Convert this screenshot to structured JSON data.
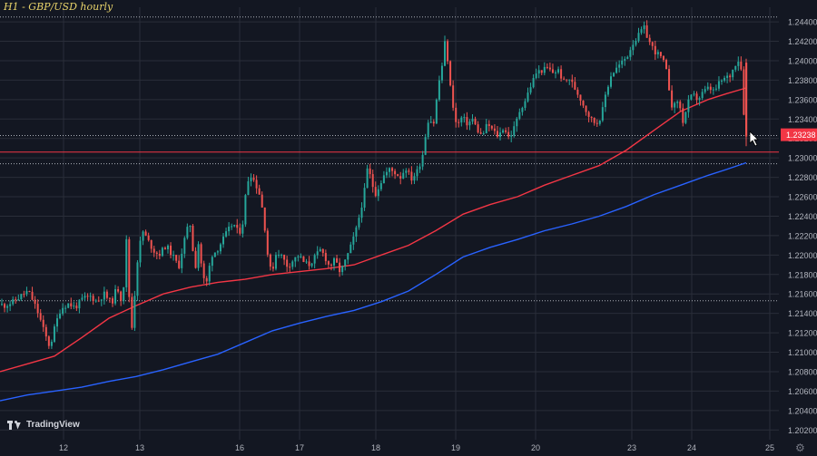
{
  "header": {
    "title": "H1 - GBP/USD hourly"
  },
  "branding": {
    "logo_text": "TradingView"
  },
  "icons": {
    "settings": "gear-icon",
    "cursor": "cursor-arrow-icon"
  },
  "colors": {
    "background": "#131722",
    "up": "#26a69a",
    "down": "#ef5350",
    "ma_fast": "#f23645",
    "ma_slow": "#2962ff",
    "grid": "#2a2e39",
    "axis_text": "#b2b5be",
    "title": "#e8d36a"
  },
  "chart_data": {
    "type": "candlestick",
    "title": "H1 - GBP/USD hourly",
    "symbol": "GBP/USD",
    "timeframe": "1H",
    "ylim": [
      1.2,
      1.2455
    ],
    "y_ticks": [
      "1.24400",
      "1.24200",
      "1.24000",
      "1.23800",
      "1.23600",
      "1.23400",
      "1.23200",
      "1.23000",
      "1.22800",
      "1.22600",
      "1.22400",
      "1.22200",
      "1.22000",
      "1.21800",
      "1.21600",
      "1.21400",
      "1.21200",
      "1.21000",
      "1.20800",
      "1.20600",
      "1.20400",
      "1.20200"
    ],
    "x_ticks": [
      {
        "label": "12",
        "t": 70
      },
      {
        "label": "13",
        "t": 154
      },
      {
        "label": "16",
        "t": 264
      },
      {
        "label": "17",
        "t": 330
      },
      {
        "label": "18",
        "t": 414
      },
      {
        "label": "19",
        "t": 502
      },
      {
        "label": "20",
        "t": 590
      },
      {
        "label": "23",
        "t": 696
      },
      {
        "label": "24",
        "t": 762
      },
      {
        "label": "25",
        "t": 848
      }
    ],
    "last_price": {
      "label": "1.23238",
      "value": 1.23238
    },
    "horizontal_levels": [
      {
        "value": 1.2445,
        "style": "dotted",
        "color": "#d1d4dc"
      },
      {
        "value": 1.2323,
        "style": "dotted",
        "color": "#d1d4dc"
      },
      {
        "value": 1.2306,
        "style": "solid",
        "color": "#f23645"
      },
      {
        "value": 1.2294,
        "style": "dotted",
        "color": "#d1d4dc"
      },
      {
        "value": 1.2153,
        "style": "dotted",
        "color": "#d1d4dc"
      }
    ],
    "price_path": [
      [
        0,
        1.215
      ],
      [
        8,
        1.2148
      ],
      [
        18,
        1.2152
      ],
      [
        26,
        1.2158
      ],
      [
        34,
        1.2163
      ],
      [
        40,
        1.2152
      ],
      [
        46,
        1.2138
      ],
      [
        52,
        1.212
      ],
      [
        58,
        1.2105
      ],
      [
        64,
        1.2128
      ],
      [
        70,
        1.2145
      ],
      [
        78,
        1.215
      ],
      [
        86,
        1.2146
      ],
      [
        94,
        1.2155
      ],
      [
        102,
        1.2158
      ],
      [
        110,
        1.2152
      ],
      [
        118,
        1.216
      ],
      [
        126,
        1.215
      ],
      [
        132,
        1.2168
      ],
      [
        138,
        1.215
      ],
      [
        143,
        1.2225
      ],
      [
        147,
        1.211
      ],
      [
        151,
        1.2155
      ],
      [
        155,
        1.22
      ],
      [
        160,
        1.2225
      ],
      [
        166,
        1.2215
      ],
      [
        172,
        1.2205
      ],
      [
        178,
        1.22
      ],
      [
        186,
        1.221
      ],
      [
        194,
        1.2198
      ],
      [
        200,
        1.2188
      ],
      [
        206,
        1.2215
      ],
      [
        212,
        1.2235
      ],
      [
        218,
        1.2185
      ],
      [
        222,
        1.2215
      ],
      [
        226,
        1.218
      ],
      [
        230,
        1.2168
      ],
      [
        236,
        1.22
      ],
      [
        242,
        1.2205
      ],
      [
        248,
        1.2215
      ],
      [
        254,
        1.2225
      ],
      [
        260,
        1.2233
      ],
      [
        266,
        1.2222
      ],
      [
        270,
        1.223
      ],
      [
        274,
        1.2265
      ],
      [
        278,
        1.2285
      ],
      [
        284,
        1.2275
      ],
      [
        290,
        1.226
      ],
      [
        294,
        1.2235
      ],
      [
        298,
        1.22
      ],
      [
        302,
        1.218
      ],
      [
        308,
        1.2205
      ],
      [
        314,
        1.2198
      ],
      [
        320,
        1.2188
      ],
      [
        326,
        1.2195
      ],
      [
        332,
        1.22
      ],
      [
        338,
        1.2192
      ],
      [
        344,
        1.219
      ],
      [
        350,
        1.2198
      ],
      [
        356,
        1.2205
      ],
      [
        360,
        1.22
      ],
      [
        366,
        1.2188
      ],
      [
        372,
        1.2195
      ],
      [
        378,
        1.2182
      ],
      [
        384,
        1.2195
      ],
      [
        390,
        1.221
      ],
      [
        396,
        1.2228
      ],
      [
        400,
        1.2245
      ],
      [
        404,
        1.2262
      ],
      [
        408,
        1.229
      ],
      [
        412,
        1.2278
      ],
      [
        416,
        1.2262
      ],
      [
        420,
        1.227
      ],
      [
        426,
        1.2282
      ],
      [
        432,
        1.2288
      ],
      [
        438,
        1.2285
      ],
      [
        444,
        1.228
      ],
      [
        450,
        1.229
      ],
      [
        456,
        1.2278
      ],
      [
        462,
        1.2285
      ],
      [
        468,
        1.23
      ],
      [
        472,
        1.2325
      ],
      [
        476,
        1.2345
      ],
      [
        480,
        1.233
      ],
      [
        486,
        1.2375
      ],
      [
        490,
        1.2395
      ],
      [
        494,
        1.2425
      ],
      [
        498,
        1.238
      ],
      [
        502,
        1.2355
      ],
      [
        506,
        1.2332
      ],
      [
        512,
        1.2342
      ],
      [
        518,
        1.2335
      ],
      [
        524,
        1.234
      ],
      [
        528,
        1.233
      ],
      [
        534,
        1.2322
      ],
      [
        540,
        1.2335
      ],
      [
        546,
        1.2328
      ],
      [
        552,
        1.2322
      ],
      [
        558,
        1.2332
      ],
      [
        564,
        1.232
      ],
      [
        570,
        1.2332
      ],
      [
        576,
        1.235
      ],
      [
        582,
        1.236
      ],
      [
        588,
        1.2375
      ],
      [
        594,
        1.2388
      ],
      [
        600,
        1.239
      ],
      [
        606,
        1.2392
      ],
      [
        612,
        1.2388
      ],
      [
        618,
        1.239
      ],
      [
        624,
        1.2378
      ],
      [
        630,
        1.2382
      ],
      [
        636,
        1.2372
      ],
      [
        642,
        1.2362
      ],
      [
        648,
        1.235
      ],
      [
        654,
        1.234
      ],
      [
        660,
        1.2335
      ],
      [
        666,
        1.2345
      ],
      [
        670,
        1.2365
      ],
      [
        676,
        1.2385
      ],
      [
        682,
        1.2392
      ],
      [
        688,
        1.2398
      ],
      [
        694,
        1.2405
      ],
      [
        700,
        1.2418
      ],
      [
        706,
        1.2425
      ],
      [
        712,
        1.2435
      ],
      [
        718,
        1.242
      ],
      [
        724,
        1.241
      ],
      [
        730,
        1.2405
      ],
      [
        736,
        1.2395
      ],
      [
        740,
        1.2372
      ],
      [
        744,
        1.235
      ],
      [
        750,
        1.236
      ],
      [
        756,
        1.2335
      ],
      [
        760,
        1.2355
      ],
      [
        766,
        1.2365
      ],
      [
        772,
        1.236
      ],
      [
        778,
        1.2368
      ],
      [
        784,
        1.2372
      ],
      [
        790,
        1.2368
      ],
      [
        796,
        1.2378
      ],
      [
        802,
        1.2382
      ],
      [
        808,
        1.2385
      ],
      [
        812,
        1.2395
      ],
      [
        816,
        1.2402
      ],
      [
        820,
        1.239
      ],
      [
        824,
        1.232
      ]
    ],
    "series": [
      {
        "name": "Fast MA (red)",
        "points": [
          [
            0,
            1.208
          ],
          [
            30,
            1.2088
          ],
          [
            60,
            1.2096
          ],
          [
            90,
            1.2115
          ],
          [
            120,
            1.2135
          ],
          [
            150,
            1.2148
          ],
          [
            180,
            1.216
          ],
          [
            210,
            1.2167
          ],
          [
            240,
            1.2172
          ],
          [
            270,
            1.2175
          ],
          [
            300,
            1.218
          ],
          [
            330,
            1.2183
          ],
          [
            360,
            1.2186
          ],
          [
            390,
            1.219
          ],
          [
            420,
            1.22
          ],
          [
            450,
            1.221
          ],
          [
            480,
            1.2225
          ],
          [
            510,
            1.2242
          ],
          [
            540,
            1.2252
          ],
          [
            570,
            1.226
          ],
          [
            600,
            1.2272
          ],
          [
            630,
            1.2282
          ],
          [
            660,
            1.2292
          ],
          [
            690,
            1.2308
          ],
          [
            720,
            1.2328
          ],
          [
            750,
            1.2348
          ],
          [
            780,
            1.236
          ],
          [
            800,
            1.2366
          ],
          [
            822,
            1.2372
          ]
        ]
      },
      {
        "name": "Slow MA (blue)",
        "points": [
          [
            0,
            1.205
          ],
          [
            30,
            1.2056
          ],
          [
            60,
            1.206
          ],
          [
            90,
            1.2064
          ],
          [
            120,
            1.207
          ],
          [
            150,
            1.2075
          ],
          [
            180,
            1.2082
          ],
          [
            210,
            1.209
          ],
          [
            240,
            1.2098
          ],
          [
            270,
            1.211
          ],
          [
            300,
            1.2122
          ],
          [
            330,
            1.213
          ],
          [
            360,
            1.2137
          ],
          [
            390,
            1.2143
          ],
          [
            420,
            1.2152
          ],
          [
            450,
            1.2163
          ],
          [
            480,
            1.218
          ],
          [
            510,
            1.2198
          ],
          [
            540,
            1.2208
          ],
          [
            570,
            1.2216
          ],
          [
            600,
            1.2225
          ],
          [
            630,
            1.2232
          ],
          [
            660,
            1.224
          ],
          [
            690,
            1.225
          ],
          [
            720,
            1.2262
          ],
          [
            750,
            1.2272
          ],
          [
            780,
            1.2282
          ],
          [
            800,
            1.2288
          ],
          [
            822,
            1.2295
          ]
        ]
      }
    ]
  }
}
